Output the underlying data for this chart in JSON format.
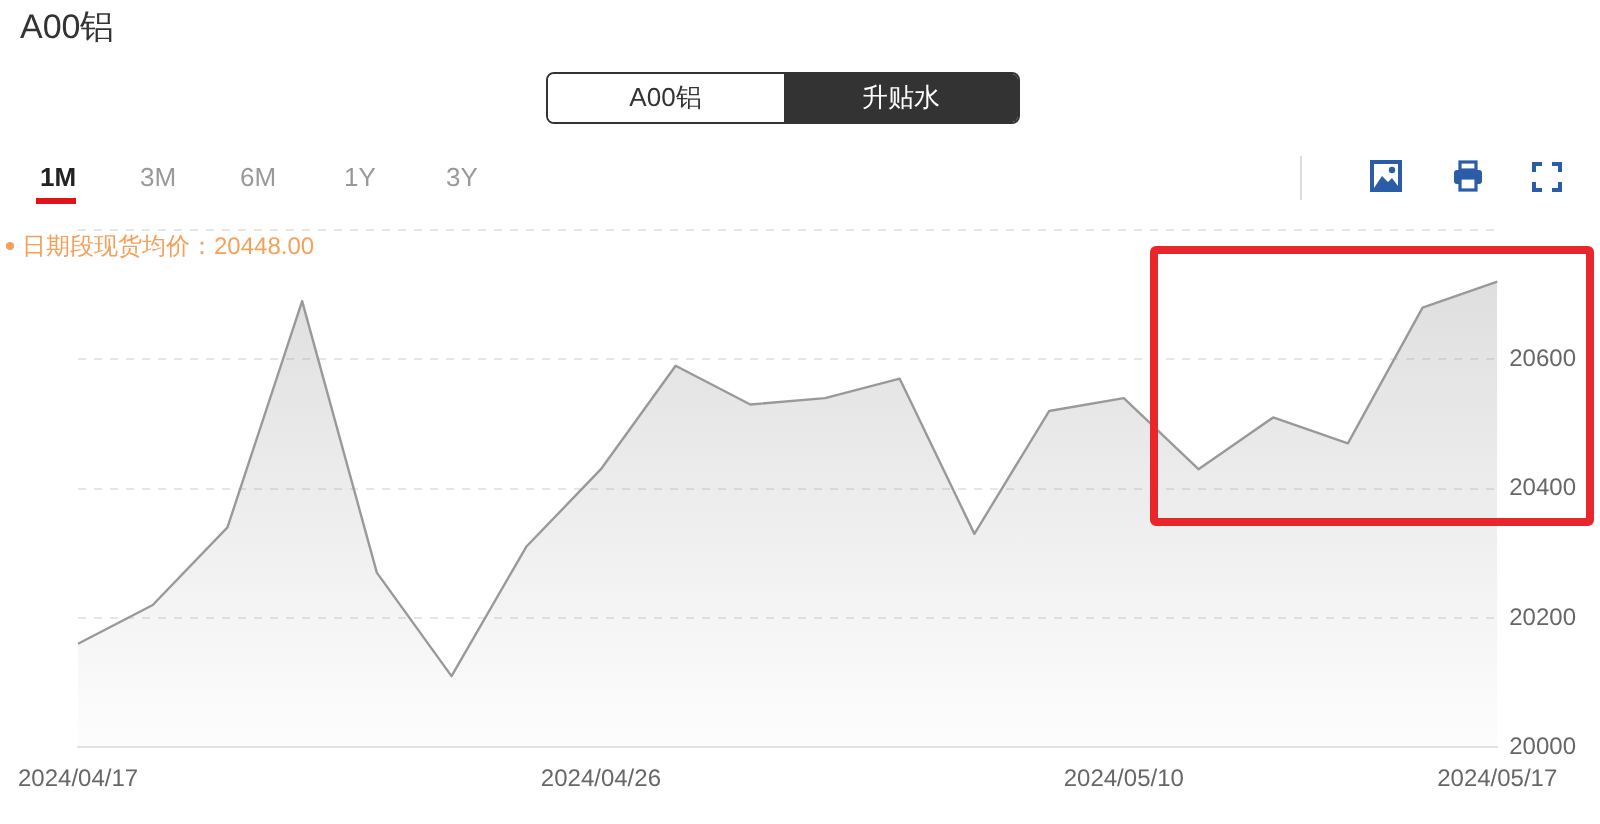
{
  "chart_data": {
    "type": "area",
    "title": "A00铝",
    "categories": [
      "2024/04/17",
      null,
      null,
      null,
      null,
      null,
      null,
      "2024/04/26",
      null,
      null,
      null,
      null,
      null,
      null,
      "2024/05/10",
      null,
      null,
      null,
      null,
      "2024/05/17"
    ],
    "values": [
      20160,
      20220,
      20340,
      20690,
      20270,
      20110,
      20310,
      20430,
      20590,
      20530,
      20540,
      20570,
      20330,
      20520,
      20540,
      20430,
      20510,
      20470,
      20680,
      20720
    ],
    "color": "#999999",
    "ylim": [
      20000,
      20800
    ],
    "yticks": [
      20000,
      20200,
      20400,
      20600,
      {
        "value": 20800,
        "label": null
      }
    ],
    "grid": "y",
    "marker": "none",
    "line_style": "solid",
    "annotations": [
      "A00铝",
      "升贴水",
      "1M",
      "3M",
      "6M",
      "1Y",
      "3Y",
      "日期段现货均价：20448.00"
    ]
  }
}
